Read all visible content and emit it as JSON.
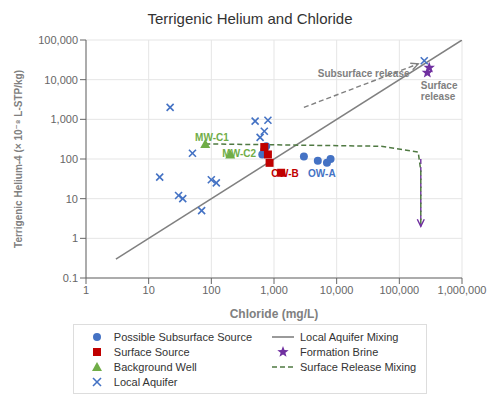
{
  "chart_data": {
    "type": "scatter",
    "title": "Terrigenic Helium and Chloride",
    "x_label": "Chloride (mg/L)",
    "y_label": "Terrigenic Helium-4 (× 10⁻⁸ L-STP/kg)",
    "log": true,
    "xlim": [
      1,
      1000000
    ],
    "ylim": [
      0.1,
      100000
    ],
    "xticks": [
      1,
      10,
      100,
      {
        "value": 1000,
        "label": "1,000"
      },
      {
        "value": 10000,
        "label": "10,000"
      },
      {
        "value": 100000,
        "label": "100,000"
      },
      {
        "value": 1000000,
        "label": "1,000,000"
      }
    ],
    "yticks": [
      0.1,
      1,
      10,
      100,
      {
        "value": 1000,
        "label": "1,000"
      },
      {
        "value": 10000,
        "label": "10,000"
      },
      {
        "value": 100000,
        "label": "100,000"
      }
    ],
    "grid": true,
    "legend": "bottom",
    "series": [
      {
        "name": "Possible Subsurface Source",
        "type": "scatter",
        "marker": "circle",
        "color": "#4472C4",
        "x": [
          700,
          750,
          650,
          3000,
          5000,
          7000,
          8000
        ],
        "values": [
          170,
          210,
          130,
          115,
          90,
          80,
          100
        ]
      },
      {
        "name": "Surface Source",
        "type": "scatter",
        "marker": "square",
        "color": "#C00000",
        "x": [
          700,
          800,
          850,
          1300
        ],
        "values": [
          200,
          130,
          80,
          45
        ]
      },
      {
        "name": "Background Well",
        "type": "scatter",
        "marker": "triangle",
        "color": "#70AD47",
        "x": [
          80,
          200
        ],
        "values": [
          240,
          130
        ]
      },
      {
        "name": "Local Aquifer",
        "type": "scatter",
        "marker": "x",
        "color": "#4472C4",
        "x": [
          15,
          22,
          30,
          35,
          50,
          70,
          100,
          120,
          500,
          600,
          700,
          800,
          250000
        ],
        "values": [
          35,
          2000,
          12,
          10,
          140,
          5,
          30,
          25,
          900,
          350,
          500,
          950,
          30000
        ]
      },
      {
        "name": "Local Aquifer Mixing",
        "type": "line",
        "line_style": "solid",
        "color": "#808080",
        "x": [
          3,
          1000000
        ],
        "values": [
          0.3,
          100000
        ]
      },
      {
        "name": "Formation Brine",
        "type": "scatter",
        "marker": "star",
        "color": "#7030A0",
        "x": [
          280000,
          300000
        ],
        "values": [
          15000,
          20000
        ]
      },
      {
        "name": "Surface Release Mixing",
        "type": "line",
        "line_style": "dashed",
        "color": "#4F7942",
        "x": [
          80,
          700,
          5000,
          50000,
          200000,
          220000,
          220000
        ],
        "values": [
          240,
          230,
          220,
          210,
          150,
          50,
          2
        ]
      }
    ],
    "annotations": [
      {
        "type": "arrow",
        "x": [
          3000,
          200000
        ],
        "y": [
          2000,
          25000
        ],
        "color": "#808080",
        "line_style": "dashed"
      },
      {
        "type": "arrow",
        "x": [
          220000,
          220000
        ],
        "y": [
          100,
          2
        ],
        "color": "#7030A0",
        "line_style": "dashed"
      },
      {
        "text": "MW-C1",
        "x": 55,
        "y": 280,
        "color": "#70AD47"
      },
      {
        "text": "MW-C2",
        "x": 150,
        "y": 110,
        "color": "#70AD47"
      },
      {
        "text": "OW-B",
        "x": 900,
        "y": 35,
        "color": "#C00000"
      },
      {
        "text": "OW-A",
        "x": 3500,
        "y": 35,
        "color": "#4472C4"
      },
      {
        "text": "Subsurface release",
        "x": 5000,
        "y": 12000,
        "color": "#808080"
      },
      {
        "text": "Surface\nrelease",
        "x": 220000,
        "y": 3000,
        "color": "#808080"
      }
    ]
  }
}
